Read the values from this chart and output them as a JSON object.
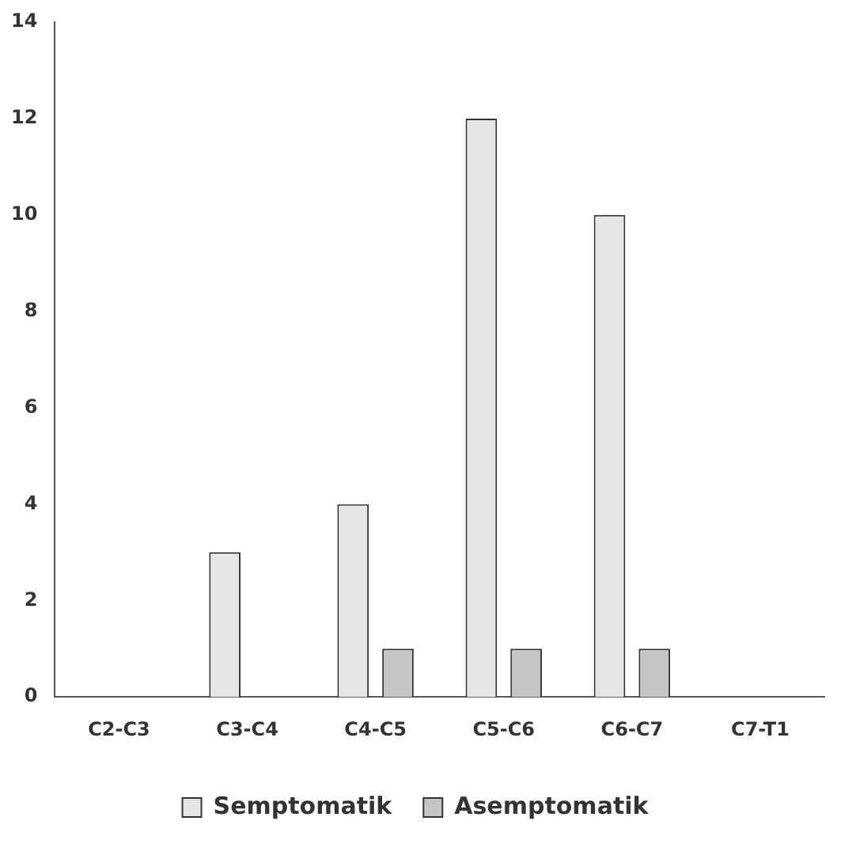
{
  "chart_data": {
    "type": "bar",
    "categories": [
      "C2-C3",
      "C3-C4",
      "C4-C5",
      "C5-C6",
      "C6-C7",
      "C7-T1"
    ],
    "series": [
      {
        "name": "Semptomatik",
        "color": "#e6e6e6",
        "values": [
          0,
          3,
          4,
          12,
          10,
          0
        ]
      },
      {
        "name": "Asemptomatik",
        "color": "#c4c4c4",
        "values": [
          0,
          0,
          1,
          1,
          1,
          0
        ]
      }
    ],
    "ylim": [
      0,
      14
    ],
    "yticks": [
      0,
      2,
      4,
      6,
      8,
      10,
      12,
      14
    ],
    "grid": false,
    "legend": "bottom"
  }
}
